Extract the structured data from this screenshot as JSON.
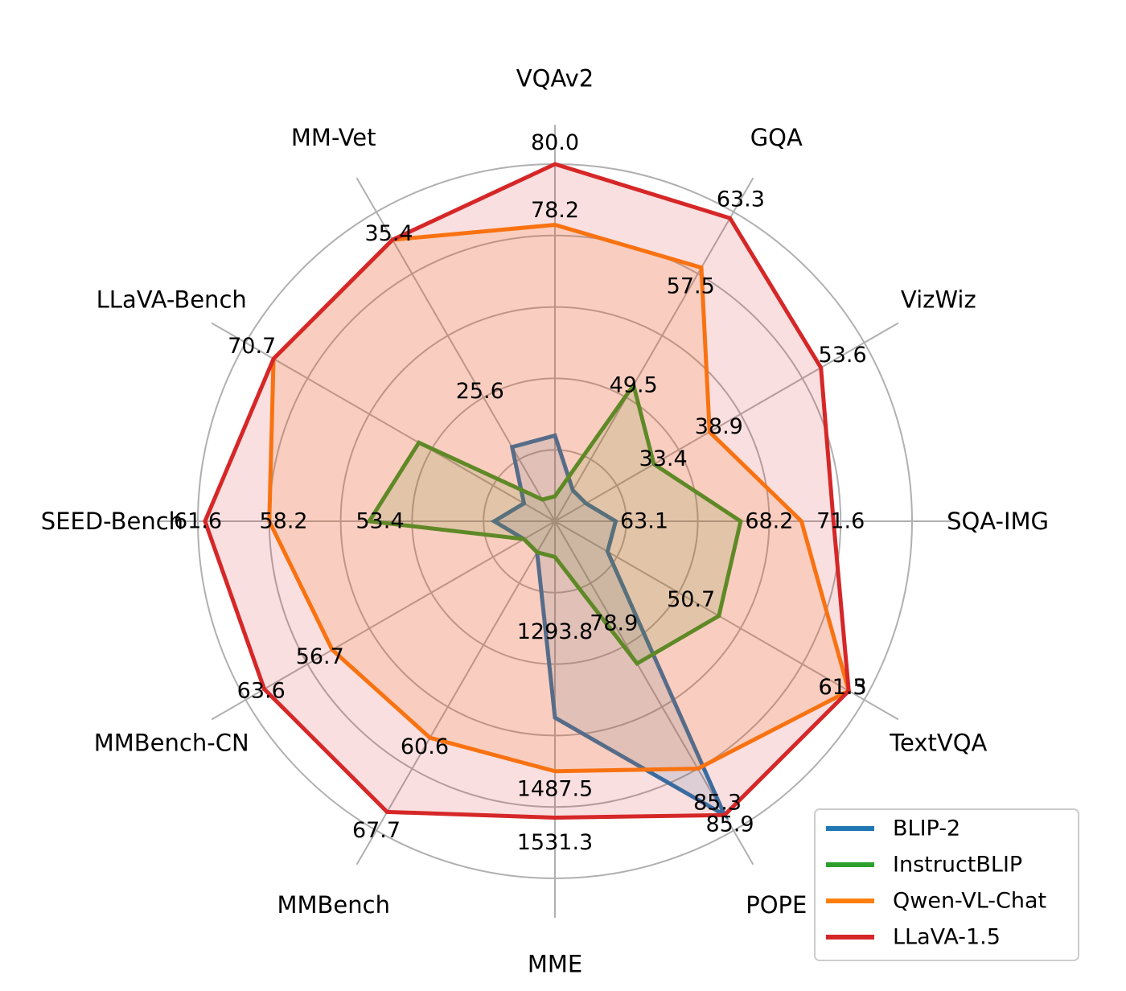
{
  "chart_data": {
    "type": "radar",
    "axes": [
      "VQAv2",
      "GQA",
      "VizWiz",
      "SQA-IMG",
      "TextVQA",
      "POPE",
      "MME",
      "MMBench",
      "MMBench-CN",
      "SEED-Bench",
      "LLaVA-Bench",
      "MM-Vet"
    ],
    "grid": true,
    "legend_position": "bottom-right",
    "series": [
      {
        "name": "BLIP-2",
        "color": "#1f77b4",
        "values": [
          null,
          null,
          null,
          null,
          null,
          85.3,
          1293.8,
          null,
          null,
          null,
          null,
          null
        ],
        "normalized": [
          0.24,
          0.1,
          0.1,
          0.17,
          0.17,
          0.95,
          0.55,
          0.1,
          0.1,
          0.17,
          0.1,
          0.24
        ]
      },
      {
        "name": "InstructBLIP",
        "color": "#2ca02c",
        "values": [
          null,
          49.5,
          33.4,
          63.1,
          50.7,
          78.9,
          null,
          null,
          null,
          53.4,
          25.6,
          null
        ],
        "normalized": [
          0.07,
          0.44,
          0.32,
          0.52,
          0.53,
          0.46,
          0.1,
          0.1,
          0.1,
          0.52,
          0.44,
          0.07
        ]
      },
      {
        "name": "Qwen-VL-Chat",
        "color": "#ff7f0e",
        "values": [
          78.2,
          57.5,
          38.9,
          68.2,
          61.5,
          null,
          1487.5,
          60.6,
          56.7,
          58.2,
          null,
          null
        ],
        "normalized": [
          0.83,
          0.82,
          0.5,
          0.69,
          0.95,
          0.8,
          0.7,
          0.7,
          0.72,
          0.8,
          0.91,
          0.91
        ]
      },
      {
        "name": "LLaVA-1.5",
        "color": "#d62728",
        "values": [
          80.0,
          63.3,
          53.6,
          71.6,
          61.3,
          85.9,
          1531.3,
          67.7,
          63.6,
          61.6,
          70.7,
          35.4
        ],
        "normalized": [
          1.0,
          0.98,
          0.86,
          0.78,
          0.95,
          0.95,
          0.83,
          0.94,
          0.94,
          0.98,
          0.91,
          0.91
        ]
      }
    ],
    "value_labels": [
      {
        "text": "80.0",
        "axis": 0,
        "r": 1.06
      },
      {
        "text": "78.2",
        "axis": 0,
        "r": 0.87
      },
      {
        "text": "63.3",
        "axis": 1,
        "r": 1.04
      },
      {
        "text": "57.5",
        "axis": 1,
        "r": 0.76
      },
      {
        "text": "49.5",
        "axis": 1,
        "r": 0.44
      },
      {
        "text": "53.6",
        "axis": 2,
        "r": 0.93
      },
      {
        "text": "38.9",
        "axis": 2,
        "r": 0.53
      },
      {
        "text": "33.4",
        "axis": 2,
        "r": 0.35
      },
      {
        "text": "71.6",
        "axis": 3,
        "r": 0.8
      },
      {
        "text": "68.2",
        "axis": 3,
        "r": 0.6
      },
      {
        "text": "63.1",
        "axis": 3,
        "r": 0.25
      },
      {
        "text": "61.5",
        "axis": 4,
        "r": 0.93
      },
      {
        "text": "61.3",
        "axis": 4,
        "r": 0.93
      },
      {
        "text": "50.7",
        "axis": 4,
        "r": 0.44
      },
      {
        "text": "85.3",
        "axis": 5,
        "r": 0.91
      },
      {
        "text": "85.9",
        "axis": 5,
        "r": 0.98
      },
      {
        "text": "78.9",
        "axis": 5,
        "r": 0.33
      },
      {
        "text": "1293.8",
        "axis": 6,
        "r": 0.31
      },
      {
        "text": "1487.5",
        "axis": 6,
        "r": 0.75
      },
      {
        "text": "1531.3",
        "axis": 6,
        "r": 0.9
      },
      {
        "text": "60.6",
        "axis": 7,
        "r": 0.73
      },
      {
        "text": "67.7",
        "axis": 7,
        "r": 1.0
      },
      {
        "text": "56.7",
        "axis": 8,
        "r": 0.76
      },
      {
        "text": "63.6",
        "axis": 8,
        "r": 0.95
      },
      {
        "text": "58.2",
        "axis": 9,
        "r": 0.76
      },
      {
        "text": "53.4",
        "axis": 9,
        "r": 0.49
      },
      {
        "text": "61.6",
        "axis": 9,
        "r": 1.0
      },
      {
        "text": "70.7",
        "axis": 10,
        "r": 0.98
      },
      {
        "text": "25.6",
        "axis": 11,
        "r": 0.42
      },
      {
        "text": "35.4",
        "axis": 11,
        "r": 0.93
      }
    ]
  }
}
